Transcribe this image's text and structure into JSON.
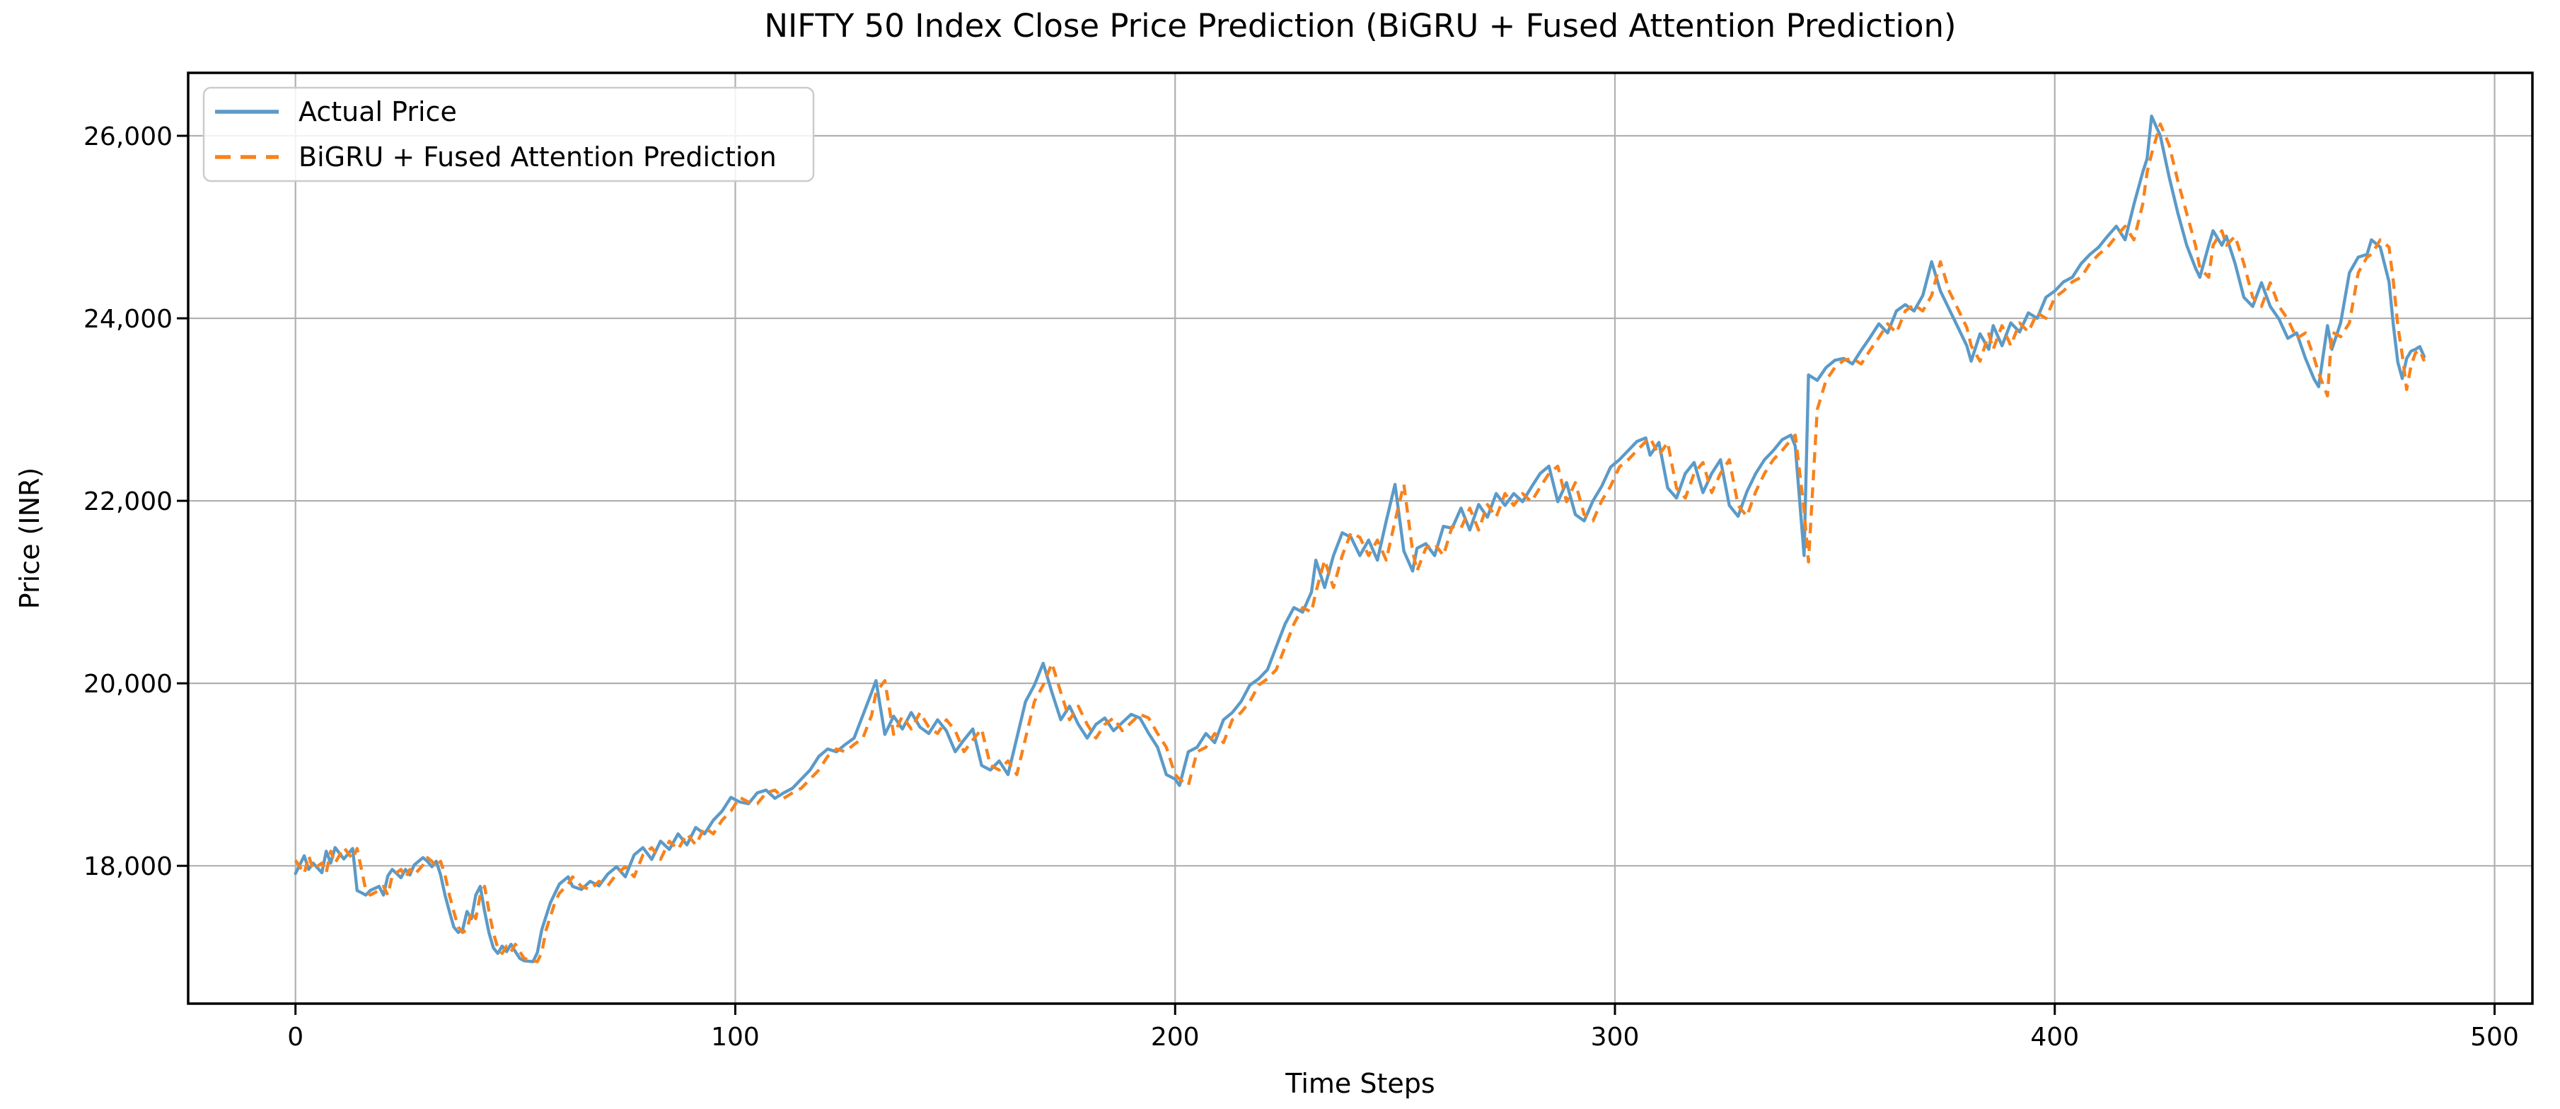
{
  "figure": {
    "background": "#ffffff",
    "grid_color": "#b0b0b0",
    "spine_color": "#000000",
    "legend_border_color": "#cccccc",
    "legend_background": "#ffffff"
  },
  "chart_data": {
    "type": "line",
    "title": "NIFTY 50 Index Close Price Prediction (BiGRU + Fused Attention Prediction)",
    "xlabel": "Time Steps",
    "ylabel": "Price (INR)",
    "xlim": [
      -24.4,
      508.6
    ],
    "ylim": [
      16490,
      26690
    ],
    "grid": true,
    "legend_position": "upper-left",
    "x_ticks": [
      0,
      100,
      200,
      300,
      400,
      500
    ],
    "x_tick_labels": [
      "0",
      "100",
      "200",
      "300",
      "400",
      "500"
    ],
    "y_ticks": [
      18000,
      20000,
      22000,
      24000,
      26000
    ],
    "y_tick_labels": [
      "18,000",
      "20,000",
      "22,000",
      "24,000",
      "26,000"
    ],
    "x": [
      0,
      2,
      3,
      4,
      6,
      7,
      8,
      9,
      11,
      13,
      14,
      16,
      17,
      19,
      20,
      21,
      22,
      24,
      25,
      26,
      27,
      29,
      30,
      31,
      32,
      33,
      34,
      35,
      36,
      37,
      38,
      39,
      40,
      41,
      42,
      43,
      44,
      45,
      46,
      47,
      48,
      49,
      50,
      51,
      52,
      54,
      55,
      56,
      57,
      58,
      59,
      60,
      62,
      63,
      65,
      67,
      69,
      71,
      73,
      75,
      77,
      79,
      81,
      83,
      85,
      87,
      89,
      91,
      93,
      95,
      97,
      99,
      101,
      103,
      105,
      107,
      109,
      111,
      113,
      115,
      117,
      119,
      121,
      123,
      125,
      127,
      129,
      131,
      132,
      134,
      136,
      138,
      140,
      142,
      144,
      146,
      148,
      150,
      152,
      154,
      156,
      158,
      160,
      162,
      164,
      166,
      168,
      170,
      172,
      174,
      176,
      178,
      180,
      182,
      184,
      186,
      188,
      190,
      192,
      194,
      196,
      198,
      200,
      201,
      203,
      205,
      207,
      209,
      211,
      213,
      215,
      217,
      219,
      221,
      223,
      225,
      227,
      229,
      231,
      232,
      234,
      236,
      238,
      240,
      242,
      244,
      246,
      248,
      250,
      252,
      254,
      255,
      257,
      259,
      261,
      263,
      265,
      267,
      269,
      271,
      273,
      275,
      277,
      279,
      281,
      283,
      285,
      287,
      289,
      291,
      293,
      295,
      297,
      299,
      301,
      303,
      305,
      307,
      308,
      310,
      312,
      314,
      316,
      318,
      320,
      322,
      324,
      326,
      328,
      330,
      332,
      334,
      336,
      338,
      340,
      341,
      343,
      344,
      346,
      348,
      350,
      352,
      354,
      356,
      358,
      360,
      362,
      364,
      366,
      368,
      370,
      372,
      374,
      376,
      378,
      380,
      381,
      383,
      385,
      386,
      388,
      390,
      392,
      394,
      396,
      398,
      400,
      402,
      404,
      406,
      408,
      410,
      412,
      414,
      416,
      418,
      420,
      421,
      422,
      424,
      426,
      428,
      430,
      432,
      433,
      435,
      436,
      438,
      439,
      441,
      443,
      445,
      447,
      449,
      451,
      453,
      455,
      457,
      459,
      460,
      462,
      463,
      465,
      467,
      469,
      471,
      472,
      474,
      476,
      477,
      478,
      479,
      480,
      481,
      482,
      483,
      484
    ],
    "series": [
      {
        "name": "Actual Price",
        "color": "#5b9ac8",
        "line_style": "solid",
        "values": [
          17915,
          18110,
          17960,
          18030,
          17925,
          18160,
          18030,
          18200,
          18075,
          18190,
          17730,
          17680,
          17730,
          17775,
          17680,
          17890,
          17960,
          17870,
          17960,
          17900,
          18010,
          18090,
          18050,
          17990,
          18050,
          17900,
          17680,
          17500,
          17330,
          17270,
          17300,
          17500,
          17420,
          17680,
          17775,
          17500,
          17265,
          17100,
          17040,
          17120,
          17060,
          17140,
          17060,
          16985,
          16960,
          16950,
          17050,
          17300,
          17450,
          17600,
          17700,
          17800,
          17880,
          17775,
          17740,
          17830,
          17780,
          17910,
          17990,
          17880,
          18120,
          18200,
          18070,
          18270,
          18180,
          18350,
          18230,
          18420,
          18350,
          18500,
          18600,
          18750,
          18700,
          18680,
          18800,
          18830,
          18740,
          18800,
          18850,
          18950,
          19050,
          19200,
          19280,
          19250,
          19330,
          19400,
          19650,
          19900,
          20030,
          19440,
          19640,
          19500,
          19680,
          19520,
          19450,
          19600,
          19480,
          19250,
          19380,
          19500,
          19100,
          19050,
          19150,
          19000,
          19400,
          19800,
          19980,
          20220,
          19900,
          19600,
          19750,
          19550,
          19400,
          19550,
          19620,
          19480,
          19570,
          19660,
          19620,
          19450,
          19300,
          19000,
          18950,
          18880,
          19250,
          19300,
          19450,
          19350,
          19600,
          19680,
          19800,
          19980,
          20050,
          20150,
          20400,
          20650,
          20830,
          20780,
          21000,
          21350,
          21050,
          21400,
          21650,
          21600,
          21400,
          21570,
          21350,
          21780,
          22180,
          21450,
          21230,
          21480,
          21530,
          21400,
          21720,
          21700,
          21920,
          21680,
          21960,
          21820,
          22080,
          21950,
          22080,
          21990,
          22150,
          22300,
          22380,
          21990,
          22200,
          21850,
          21780,
          22000,
          22160,
          22370,
          22450,
          22550,
          22650,
          22690,
          22500,
          22640,
          22140,
          22030,
          22300,
          22420,
          22090,
          22300,
          22450,
          21950,
          21830,
          22100,
          22300,
          22450,
          22550,
          22670,
          22720,
          22600,
          21400,
          23380,
          23320,
          23460,
          23540,
          23560,
          23500,
          23650,
          23790,
          23940,
          23840,
          24080,
          24150,
          24080,
          24250,
          24620,
          24300,
          24100,
          23900,
          23700,
          23530,
          23830,
          23660,
          23920,
          23700,
          23950,
          23850,
          24060,
          24000,
          24230,
          24300,
          24400,
          24450,
          24600,
          24700,
          24780,
          24900,
          25010,
          24860,
          25250,
          25600,
          25750,
          26216,
          26000,
          25550,
          25150,
          24800,
          24550,
          24450,
          24800,
          24960,
          24800,
          24900,
          24600,
          24230,
          24130,
          24390,
          24130,
          23990,
          23780,
          23840,
          23560,
          23330,
          23250,
          23920,
          23660,
          23950,
          24500,
          24670,
          24700,
          24860,
          24780,
          24400,
          23920,
          23520,
          23340,
          23560,
          23640,
          23660,
          23690,
          23580
        ]
      },
      {
        "name": "BiGRU + Fused Attention Prediction",
        "color": "#f8821c",
        "line_style": "dashed",
        "values": [
          18060,
          17915,
          18110,
          17960,
          18030,
          17925,
          18160,
          18030,
          18200,
          18075,
          18190,
          17730,
          17680,
          17730,
          17775,
          17680,
          17890,
          17960,
          17870,
          17960,
          17900,
          18010,
          18090,
          18050,
          17990,
          18050,
          17900,
          17680,
          17500,
          17330,
          17270,
          17300,
          17500,
          17420,
          17680,
          17775,
          17500,
          17265,
          17100,
          17040,
          17120,
          17060,
          17140,
          17060,
          16985,
          16960,
          16950,
          17050,
          17300,
          17450,
          17600,
          17700,
          17800,
          17880,
          17775,
          17740,
          17830,
          17780,
          17910,
          17990,
          17880,
          18120,
          18200,
          18070,
          18270,
          18180,
          18350,
          18230,
          18420,
          18350,
          18500,
          18600,
          18750,
          18700,
          18680,
          18800,
          18830,
          18740,
          18800,
          18850,
          18950,
          19050,
          19200,
          19280,
          19250,
          19330,
          19400,
          19650,
          19900,
          20030,
          19440,
          19640,
          19500,
          19680,
          19520,
          19450,
          19600,
          19480,
          19250,
          19380,
          19500,
          19100,
          19050,
          19150,
          19000,
          19400,
          19800,
          19980,
          20220,
          19900,
          19600,
          19750,
          19550,
          19400,
          19550,
          19620,
          19480,
          19570,
          19660,
          19620,
          19450,
          19300,
          19000,
          18950,
          18880,
          19250,
          19300,
          19450,
          19350,
          19600,
          19680,
          19800,
          19980,
          20050,
          20150,
          20400,
          20650,
          20830,
          20780,
          21000,
          21350,
          21050,
          21400,
          21650,
          21600,
          21400,
          21570,
          21350,
          21780,
          22180,
          21450,
          21230,
          21480,
          21530,
          21400,
          21720,
          21700,
          21920,
          21680,
          21960,
          21820,
          22080,
          21950,
          22080,
          21990,
          22150,
          22300,
          22380,
          21990,
          22200,
          21850,
          21780,
          22000,
          22160,
          22370,
          22450,
          22550,
          22650,
          22690,
          22500,
          22640,
          22140,
          22030,
          22300,
          22420,
          22090,
          22300,
          22450,
          21950,
          21830,
          22100,
          22300,
          22450,
          22550,
          22670,
          22720,
          21900,
          21330,
          23000,
          23320,
          23460,
          23540,
          23560,
          23500,
          23650,
          23790,
          23940,
          23840,
          24080,
          24150,
          24080,
          24250,
          24620,
          24300,
          24100,
          23900,
          23700,
          23530,
          23830,
          23660,
          23920,
          23700,
          23950,
          23850,
          24060,
          24000,
          24230,
          24300,
          24400,
          24450,
          24600,
          24700,
          24780,
          24900,
          25010,
          24860,
          25250,
          25600,
          25800,
          26130,
          25900,
          25500,
          25150,
          24800,
          24550,
          24450,
          24800,
          24960,
          24800,
          24900,
          24600,
          24230,
          24130,
          24390,
          24130,
          23990,
          23780,
          23840,
          23560,
          23400,
          23150,
          23850,
          23800,
          23950,
          24500,
          24670,
          24700,
          24860,
          24780,
          24400,
          23920,
          23600,
          23220,
          23480,
          23620,
          23650,
          23530
        ]
      }
    ]
  }
}
